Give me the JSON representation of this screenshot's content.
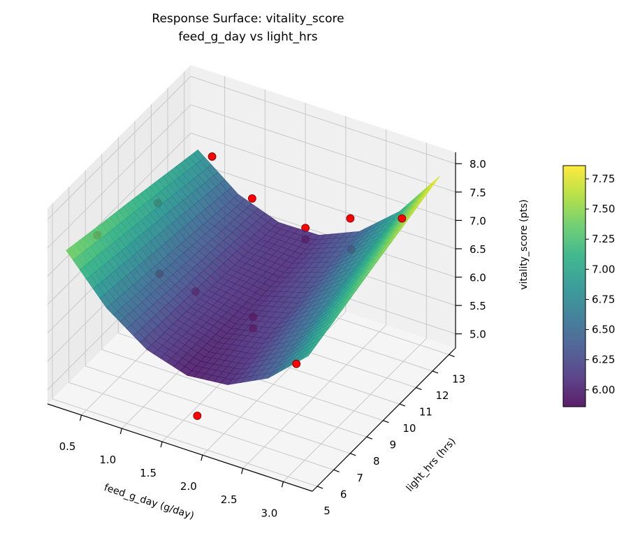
{
  "chart_data": {
    "type": "surface3d",
    "title": [
      "Response Surface: vitality_score",
      "feed_g_day vs light_hrs"
    ],
    "xlabel": "feed_g_day (g/day)",
    "ylabel": "light_hrs (hrs)",
    "zlabel": "vitality_score (pts)",
    "xlim": [
      0.08,
      3.36
    ],
    "ylim": [
      4.7,
      13.4
    ],
    "zlim": [
      4.75,
      8.2
    ],
    "xticks": [
      "0.5",
      "1.0",
      "1.5",
      "2.0",
      "2.5",
      "3.0"
    ],
    "yticks": [
      "5",
      "6",
      "7",
      "8",
      "9",
      "10",
      "11",
      "12",
      "13"
    ],
    "zticks": [
      "5.0",
      "5.5",
      "6.0",
      "6.5",
      "7.0",
      "7.5",
      "8.0"
    ],
    "grid": true,
    "colormap": "viridis",
    "surface": {
      "feed": [
        0.25,
        0.75,
        1.25,
        1.75,
        2.25,
        2.75,
        3.25
      ],
      "light": [
        5,
        7,
        9,
        11,
        13
      ],
      "z": [
        [
          7.45,
          7.31,
          7.18,
          7.04,
          6.9
        ],
        [
          6.67,
          6.59,
          6.51,
          6.43,
          6.35
        ],
        [
          6.17,
          6.15,
          6.13,
          6.11,
          6.09
        ],
        [
          5.95,
          5.99,
          6.03,
          6.06,
          6.1
        ],
        [
          6.02,
          6.12,
          6.21,
          6.31,
          6.4
        ],
        [
          6.37,
          6.53,
          6.68,
          6.84,
          6.99
        ],
        [
          7.0,
          7.21,
          7.43,
          7.64,
          7.85
        ]
      ]
    },
    "points": [
      {
        "feed": 0.63,
        "light": 12,
        "z": 7.25
      },
      {
        "feed": 1.33,
        "light": 11,
        "z": 7.13
      },
      {
        "feed": 2.24,
        "light": 12.5,
        "z": 6.77
      },
      {
        "feed": 2.88,
        "light": 12.5,
        "z": 7.07
      },
      {
        "feed": 2.49,
        "light": 8,
        "z": 5.63
      },
      {
        "feed": 1.67,
        "light": 6,
        "z": 4.91
      },
      {
        "feed": 0.43,
        "light": 6,
        "z": 7.51
      },
      {
        "feed": 0.57,
        "light": 9,
        "z": 7.27
      },
      {
        "feed": 1.0,
        "light": 7,
        "z": 6.81
      },
      {
        "feed": 1.24,
        "light": 8,
        "z": 6.32
      },
      {
        "feed": 1.75,
        "light": 9,
        "z": 5.82
      },
      {
        "feed": 1.75,
        "light": 9,
        "z": 5.62
      },
      {
        "feed": 1.99,
        "light": 11,
        "z": 6.92
      },
      {
        "feed": 1.99,
        "light": 11,
        "z": 6.72
      },
      {
        "feed": 2.56,
        "light": 11,
        "z": 6.81
      }
    ],
    "point_color": "#ff0000",
    "colorbar": {
      "range": [
        5.86,
        7.86
      ],
      "ticks": [
        "6.00",
        "6.25",
        "6.50",
        "6.75",
        "7.00",
        "7.25",
        "7.50",
        "7.75"
      ]
    }
  }
}
